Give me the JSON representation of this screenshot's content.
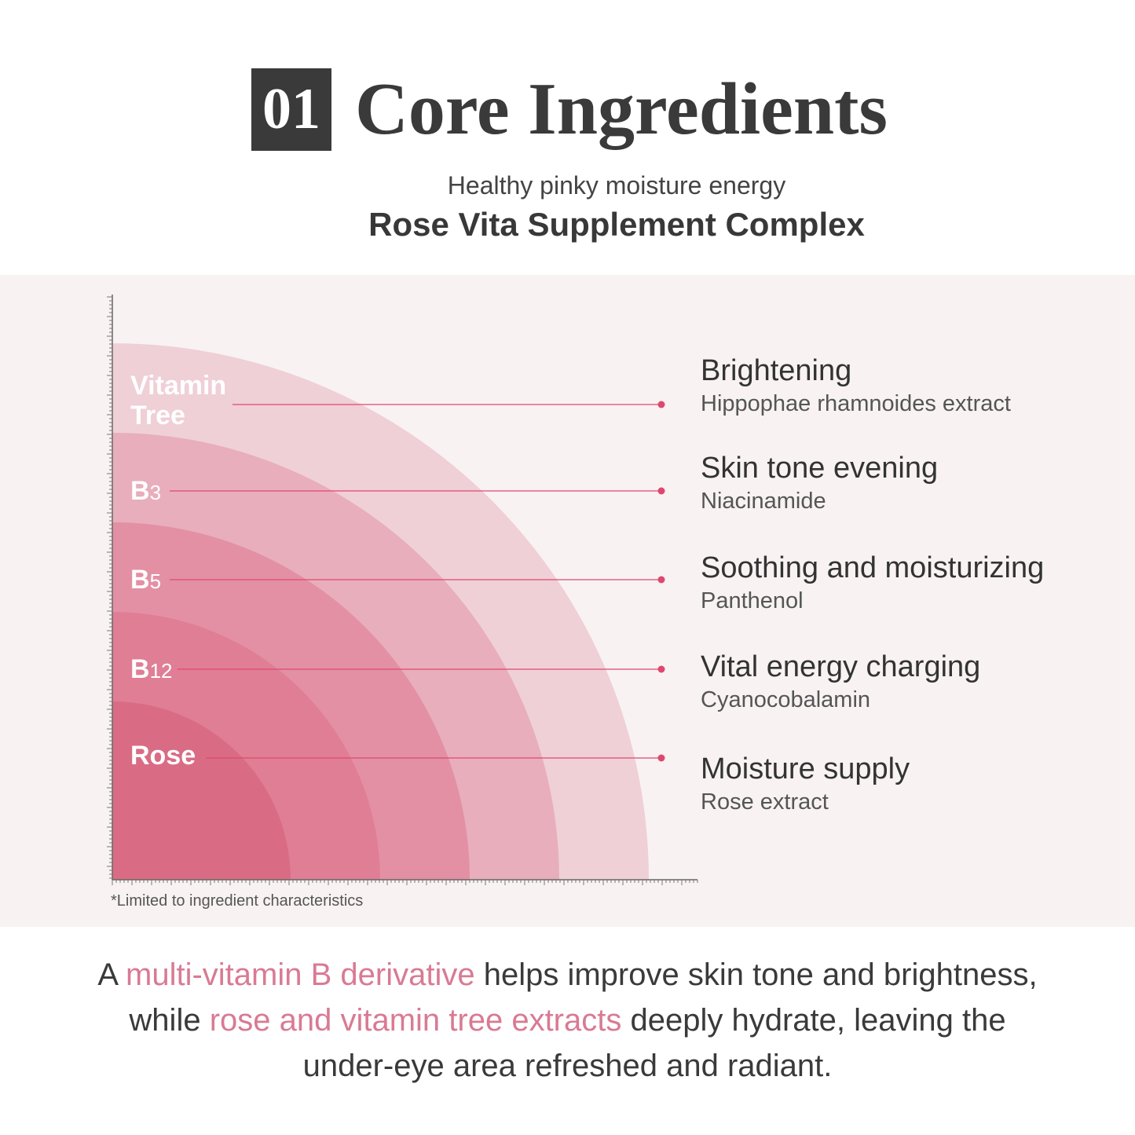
{
  "header": {
    "number": "01",
    "title": "Core Ingredients",
    "subtitle": "Healthy pinky moisture energy",
    "complex_name": "Rose Vita Supplement Complex"
  },
  "layers": [
    {
      "label": "Vitamin",
      "label_line2": "Tree",
      "benefit": "Brightening",
      "ingredient": "Hippophae rhamnoides extract",
      "color": "#efd0d6"
    },
    {
      "label": "B",
      "label_sub": "3",
      "benefit": "Skin tone evening",
      "ingredient": "Niacinamide",
      "color": "#e8aebb"
    },
    {
      "label": "B",
      "label_sub": "5",
      "benefit": "Soothing and moisturizing",
      "ingredient": "Panthenol",
      "color": "#e390a4"
    },
    {
      "label": "B",
      "label_sub": "12",
      "benefit": "Vital energy charging",
      "ingredient": "Cyanocobalamin",
      "color": "#df7e95"
    },
    {
      "label": "Rose",
      "benefit": "Moisture supply",
      "ingredient": "Rose extract",
      "color": "#d96c84"
    }
  ],
  "colors": {
    "panel_background": "#f8f2f3",
    "connector_line": "#e0476f",
    "dark_text": "#3a3a3a",
    "highlight": "#d97a93"
  },
  "footnote": "*Limited to ingredient characteristics",
  "description": {
    "line1_prefix": "A ",
    "line1_highlight": "multi-vitamin B derivative",
    "line1_suffix": " helps improve skin tone and brightness,",
    "line2_prefix": "while ",
    "line2_highlight": "rose and vitamin tree extracts",
    "line2_suffix": " deeply hydrate, leaving the",
    "line3": "under-eye area refreshed and radiant."
  }
}
